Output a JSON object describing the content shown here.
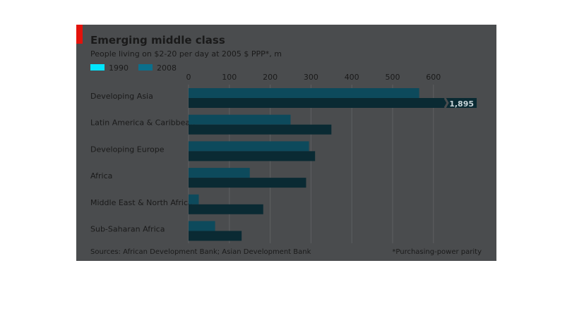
{
  "colors": {
    "background": "#4a4c4e",
    "accent_red": "#e3120b",
    "series_1990": "#00e5ff",
    "series_2008": "#0b6f8c",
    "text_dark": "#1a1a1a",
    "grid": "#5d5f61"
  },
  "chart_data": {
    "type": "bar",
    "orientation": "horizontal",
    "title": "Emerging middle class",
    "subtitle": "People living on $2-20 per day at 2005 $ PPP*, m",
    "categories": [
      "Developing Asia",
      "Latin America & Caribbean",
      "Developing Europe",
      "Africa",
      "Middle East & North Africa",
      "Sub-Saharan Africa"
    ],
    "series": [
      {
        "name": "1990",
        "values": [
          565,
          250,
          295,
          150,
          25,
          65
        ]
      },
      {
        "name": "2008",
        "values": [
          1895,
          350,
          310,
          288,
          183,
          130
        ]
      }
    ],
    "xticks": [
      "0",
      "100",
      "200",
      "300",
      "400",
      "500",
      "600"
    ],
    "xlim": [
      0,
      700
    ],
    "grid": true,
    "axis_break": {
      "category": "Developing Asia",
      "series": "2008",
      "label": "1,895"
    },
    "legend_position": "top-left",
    "source": "Sources: African Development Bank; Asian Development Bank",
    "footnote": "*Purchasing-power parity"
  }
}
